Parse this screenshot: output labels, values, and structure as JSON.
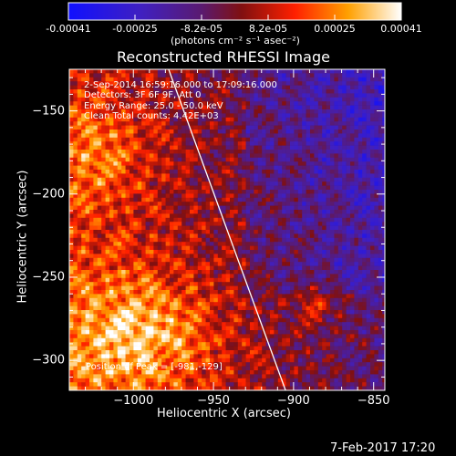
{
  "colorbar": {
    "ticks": [
      "-0.00041",
      "-0.00025",
      "-8.2e-05",
      "8.2e-05",
      "0.00025",
      "0.00041"
    ],
    "unit_label": "(photons cm⁻² s⁻¹ asec⁻²)"
  },
  "chart_data": {
    "type": "heatmap",
    "title": "Reconstructed RHESSI Image",
    "xlabel": "Heliocentric X (arcsec)",
    "ylabel": "Heliocentric Y (arcsec)",
    "xlim": [
      -1040,
      -843
    ],
    "ylim": [
      -318,
      -125
    ],
    "x_ticks": [
      -1000,
      -950,
      -900,
      -850
    ],
    "y_ticks": [
      -150,
      -200,
      -250,
      -300
    ],
    "x_tick_labels": [
      "−1000",
      "−950",
      "−900",
      "−850"
    ],
    "y_tick_labels": [
      "−150",
      "−200",
      "−250",
      "−300"
    ],
    "colormap": "rhessi (blue-purple-red-orange-yellow-white)",
    "value_range": [
      -0.00041,
      0.00041
    ],
    "annotations": [
      "2-Sep-2014 16:59:16.000 to 17:09:16.000",
      "Detectors: 3F 6F 9F, Att 0",
      "Energy Range: 25.0 - 50.0 keV",
      "Clean   Total counts: 4.42E+03"
    ],
    "peak_label": "Position of Peak = [-981,-129]",
    "peak_position": [
      -981,
      -129
    ],
    "limb_line": [
      [
        -978,
        -125
      ],
      [
        -905,
        -318
      ]
    ]
  },
  "footer": {
    "date": "7-Feb-2017 17:20"
  }
}
